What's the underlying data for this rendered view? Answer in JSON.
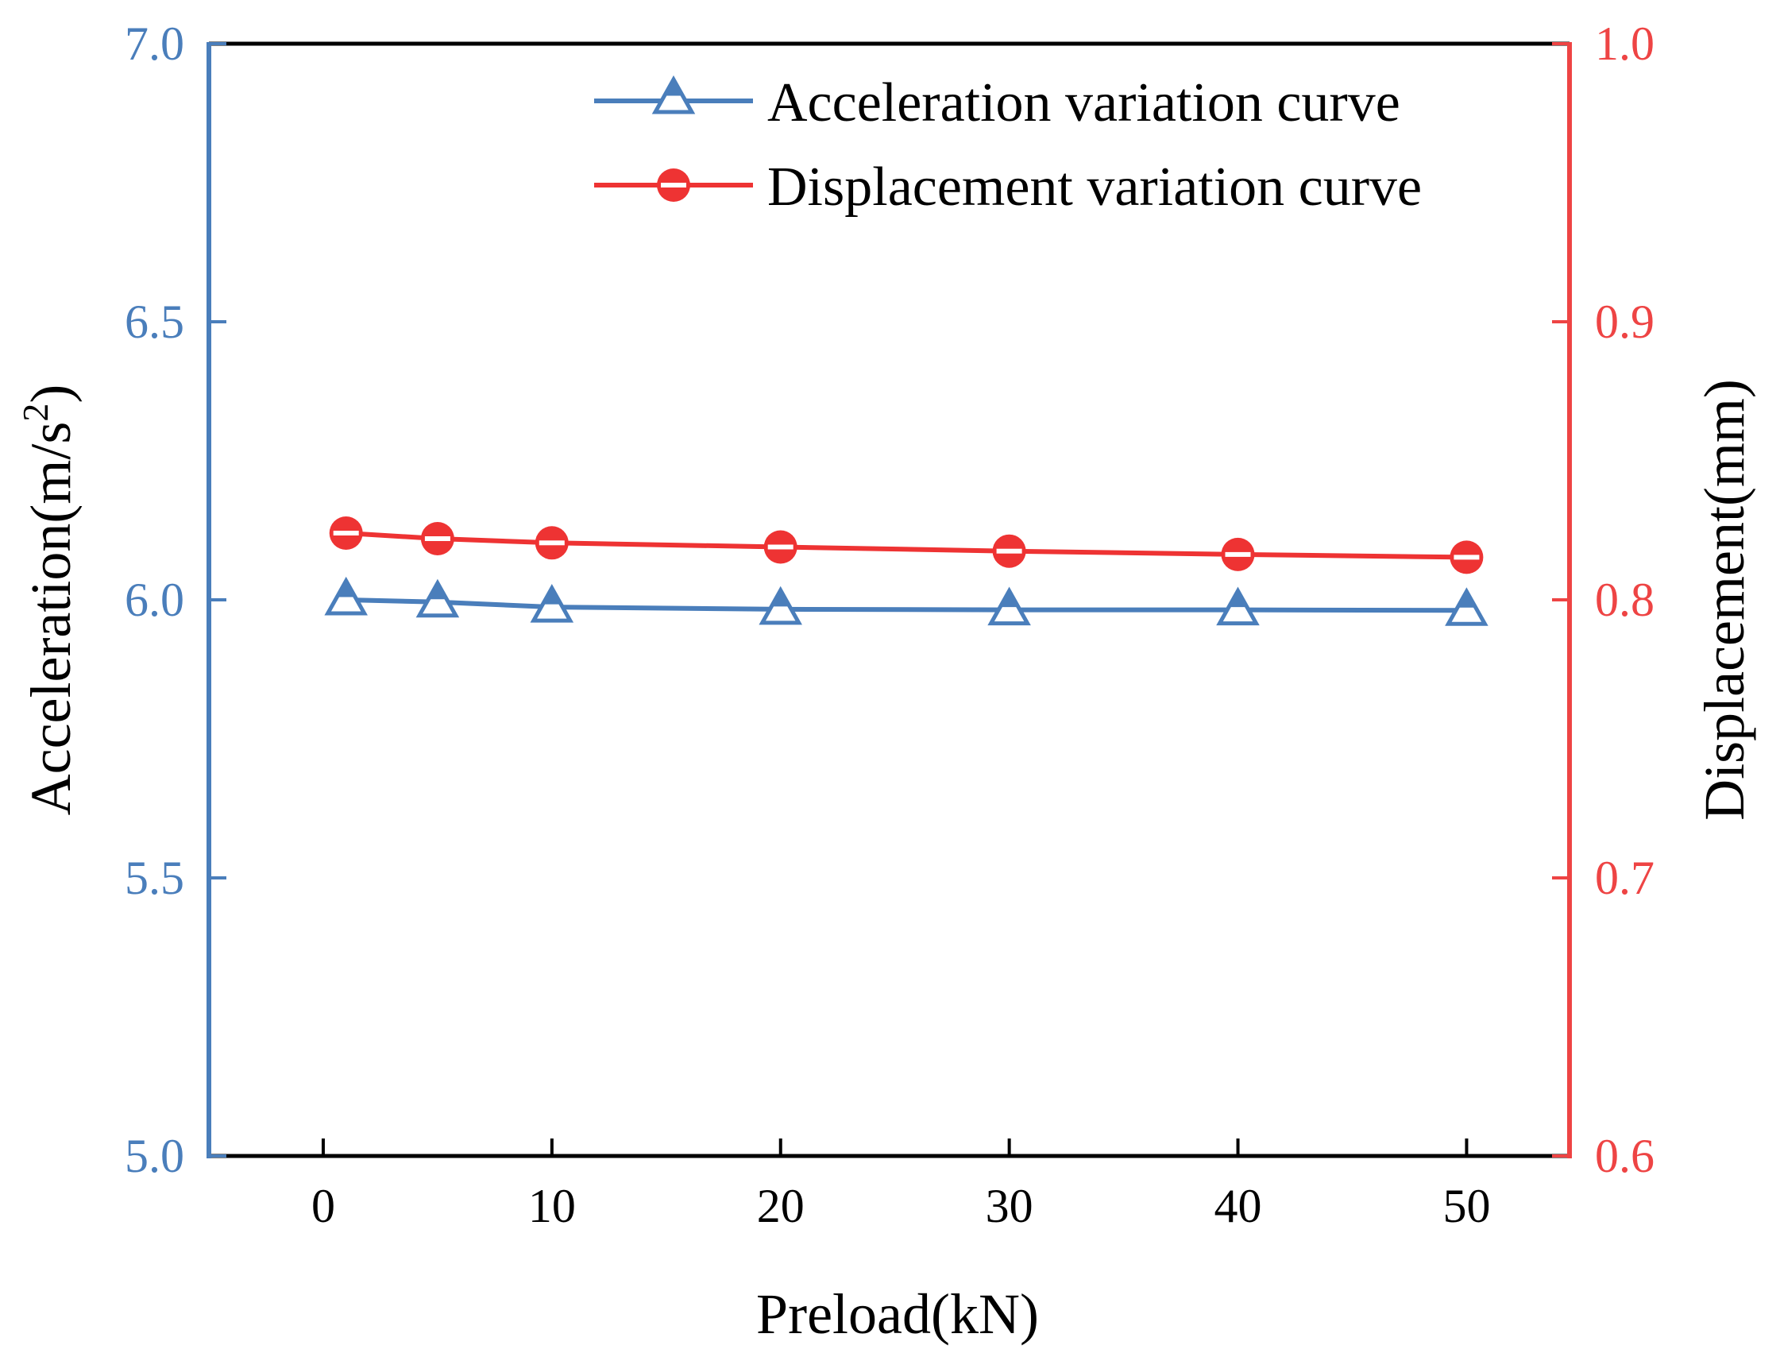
{
  "chart_data": {
    "type": "line",
    "xlabel": "Preload(kN)",
    "ylabel_left": "Acceleration(m/s",
    "ylabel_left_sup": "2",
    "ylabel_left_close": ")",
    "ylabel_right": "Displacement(mm)",
    "xlim": [
      -5,
      54.5
    ],
    "ylim_left": [
      5.0,
      7.0
    ],
    "ylim_right": [
      0.6,
      1.0
    ],
    "x_ticks": [
      0,
      10,
      20,
      30,
      40,
      50
    ],
    "x_tick_labels": [
      "0",
      "10",
      "20",
      "30",
      "40",
      "50"
    ],
    "y_left_ticks": [
      5.0,
      5.5,
      6.0,
      6.5,
      7.0
    ],
    "y_left_tick_labels": [
      "5.0",
      "5.5",
      "6.0",
      "6.5",
      "7.0"
    ],
    "y_right_ticks": [
      0.6,
      0.7,
      0.8,
      0.9,
      1.0
    ],
    "y_right_tick_labels": [
      "0.6",
      "0.7",
      "0.8",
      "0.9",
      "1.0"
    ],
    "grid": false,
    "legend_position": "top-right",
    "colors": {
      "left_axis": "#4a7ebb",
      "right_axis": "#ee4444",
      "acc_line": "#4a7ebb",
      "disp_line": "#ee3333"
    },
    "series": [
      {
        "name": "Acceleration variation curve",
        "axis": "left",
        "marker": "triangle",
        "x": [
          1,
          5,
          10,
          20,
          30,
          40,
          50
        ],
        "values": [
          6.0,
          5.996,
          5.987,
          5.983,
          5.982,
          5.982,
          5.981
        ]
      },
      {
        "name": "Displacement variation curve",
        "axis": "right",
        "marker": "half-circle",
        "x": [
          1,
          5,
          10,
          20,
          30,
          40,
          50
        ],
        "values": [
          0.824,
          0.822,
          0.8205,
          0.819,
          0.8175,
          0.8163,
          0.8153
        ]
      }
    ]
  }
}
